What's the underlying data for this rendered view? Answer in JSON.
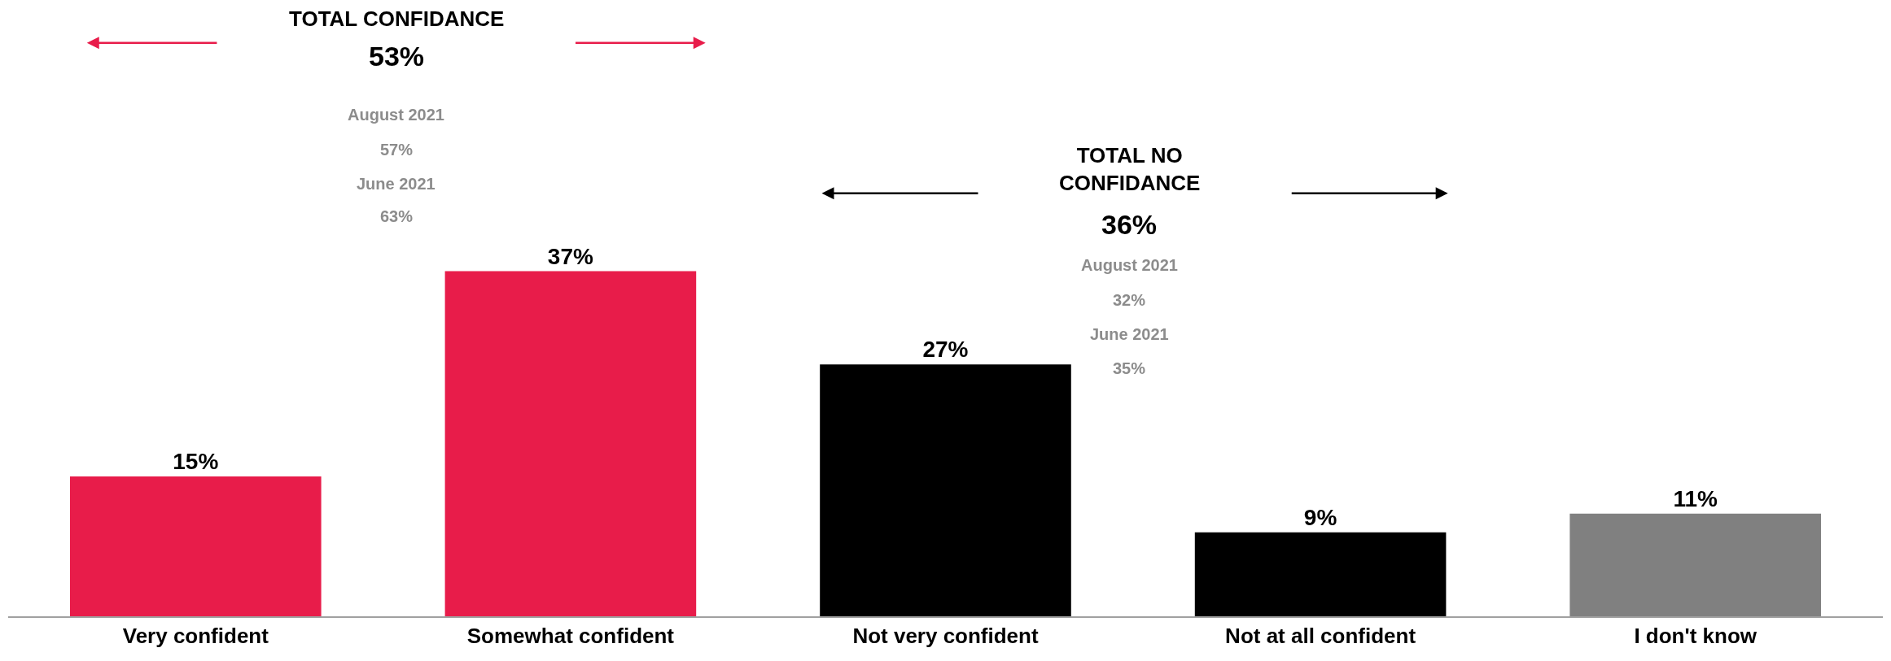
{
  "chart_data": {
    "type": "bar",
    "categories": [
      "Very confident",
      "Somewhat confident",
      "Not very confident",
      "Not at all confident",
      "I don't know"
    ],
    "values": [
      15,
      37,
      27,
      9,
      11
    ],
    "value_labels": [
      "15%",
      "37%",
      "27%",
      "9%",
      "11%"
    ],
    "colors": [
      "#e81c4a",
      "#e81c4a",
      "#000000",
      "#000000",
      "#808080"
    ],
    "annotations": [
      "TOTAL CONFIDANCE",
      "53%",
      "August 2021",
      "57%",
      "June 2021",
      "63%",
      "TOTAL NO\nCONFIDANCE",
      "36%",
      "August 2021",
      "32%",
      "June 2021",
      "35%"
    ],
    "legend": false
  }
}
